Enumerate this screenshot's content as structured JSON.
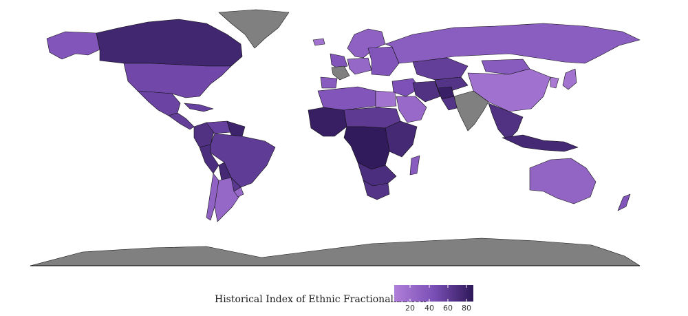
{
  "legend": {
    "title": "Historical Index of Ethnic Fractionalization",
    "ticks": [
      "20",
      "40",
      "60",
      "80"
    ],
    "colors": {
      "low": "#b07fd8",
      "mid": "#7a4fb6",
      "high": "#2e1858",
      "nodata": "#808080"
    }
  },
  "regions": [
    {
      "name": "Canada",
      "level": 80
    },
    {
      "name": "Alaska",
      "level": 45
    },
    {
      "name": "Greenland",
      "level": null
    },
    {
      "name": "United States",
      "level": 55
    },
    {
      "name": "Mexico",
      "level": 58
    },
    {
      "name": "Central America",
      "level": 62
    },
    {
      "name": "Caribbean",
      "level": 60
    },
    {
      "name": "Colombia",
      "level": 72
    },
    {
      "name": "Venezuela",
      "level": 60
    },
    {
      "name": "Guianas",
      "level": 82
    },
    {
      "name": "Brazil",
      "level": 64
    },
    {
      "name": "Peru",
      "level": 74
    },
    {
      "name": "Bolivia",
      "level": 78
    },
    {
      "name": "Paraguay",
      "level": 66
    },
    {
      "name": "Argentina",
      "level": 30
    },
    {
      "name": "Chile",
      "level": 34
    },
    {
      "name": "Uruguay",
      "level": 28
    },
    {
      "name": "Iceland",
      "level": 20
    },
    {
      "name": "Scandinavia",
      "level": 35
    },
    {
      "name": "Western Europe",
      "level": 45
    },
    {
      "name": "France",
      "level": null
    },
    {
      "name": "Iberia",
      "level": 40
    },
    {
      "name": "Central Europe",
      "level": 30
    },
    {
      "name": "Eastern Europe",
      "level": 45
    },
    {
      "name": "Russia",
      "level": 38
    },
    {
      "name": "Kazakhstan",
      "level": 62
    },
    {
      "name": "Central Asia",
      "level": 70
    },
    {
      "name": "Mongolia",
      "level": 40
    },
    {
      "name": "China",
      "level": 22
    },
    {
      "name": "North Africa",
      "level": 45
    },
    {
      "name": "Egypt",
      "level": 20
    },
    {
      "name": "Middle East",
      "level": 48
    },
    {
      "name": "Arabian Peninsula",
      "level": 28
    },
    {
      "name": "Iran",
      "level": 72
    },
    {
      "name": "Afghanistan",
      "level": 84
    },
    {
      "name": "Pakistan",
      "level": 70
    },
    {
      "name": "India",
      "level": null
    },
    {
      "name": "Southeast Asia",
      "level": 72
    },
    {
      "name": "Japan",
      "level": 20
    },
    {
      "name": "Korea",
      "level": 15
    },
    {
      "name": "West Africa",
      "level": 85
    },
    {
      "name": "Sahel",
      "level": 65
    },
    {
      "name": "Central Africa",
      "level": 88
    },
    {
      "name": "East Africa",
      "level": 78
    },
    {
      "name": "Southern Africa",
      "level": 74
    },
    {
      "name": "South Africa",
      "level": 70
    },
    {
      "name": "Madagascar",
      "level": 40
    },
    {
      "name": "Indonesia",
      "level": 78
    },
    {
      "name": "Australia",
      "level": 32
    },
    {
      "name": "New Zealand",
      "level": 45
    },
    {
      "name": "Antarctica",
      "level": null
    }
  ]
}
